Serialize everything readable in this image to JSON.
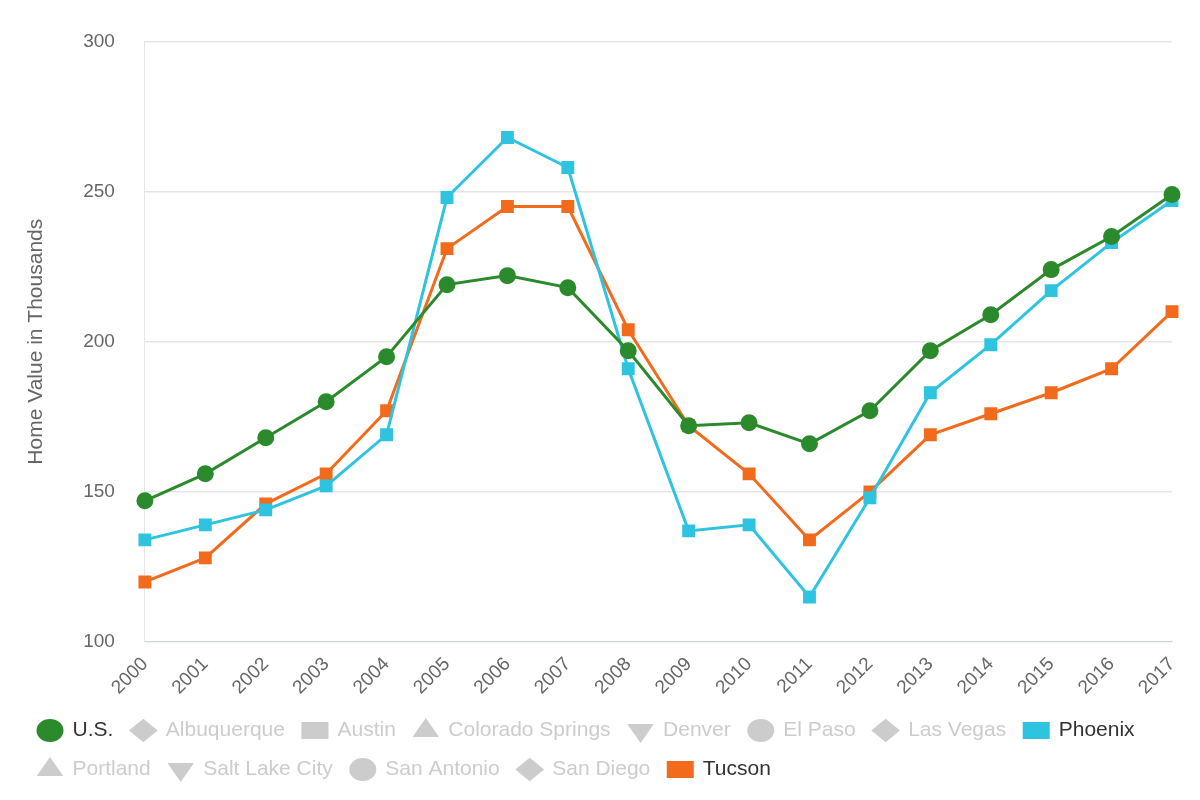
{
  "chart_data": {
    "type": "line",
    "y_label": "Home Value in Thousands",
    "categories": [
      "2000",
      "2001",
      "2002",
      "2003",
      "2004",
      "2005",
      "2006",
      "2007",
      "2008",
      "2009",
      "2010",
      "2011",
      "2012",
      "2013",
      "2014",
      "2015",
      "2016",
      "2017"
    ],
    "ylim": [
      100,
      300
    ],
    "yticks": [
      100,
      150,
      200,
      250,
      300
    ],
    "grid": true,
    "legend": "bottom",
    "series": [
      {
        "name": "U.S.",
        "color": "#2b8a2b",
        "marker": "circle",
        "values": [
          147,
          156,
          168,
          180,
          195,
          219,
          222,
          218,
          197,
          172,
          173,
          166,
          177,
          197,
          209,
          224,
          235,
          249
        ]
      },
      {
        "name": "Albuquerque",
        "color": "#cccccc",
        "marker": "diamond",
        "values": [
          null,
          null,
          null,
          null,
          null,
          null,
          null,
          null,
          null,
          null,
          null,
          null,
          null,
          null,
          null,
          null,
          null,
          null
        ]
      },
      {
        "name": "Austin",
        "color": "#cccccc",
        "marker": "square",
        "values": [
          null,
          null,
          null,
          null,
          null,
          null,
          null,
          null,
          null,
          null,
          null,
          null,
          null,
          null,
          null,
          null,
          null,
          null
        ]
      },
      {
        "name": "Colorado Springs",
        "color": "#cccccc",
        "marker": "triangle",
        "values": [
          null,
          null,
          null,
          null,
          null,
          null,
          null,
          null,
          null,
          null,
          null,
          null,
          null,
          null,
          null,
          null,
          null,
          null
        ]
      },
      {
        "name": "Denver",
        "color": "#cccccc",
        "marker": "triangle-down",
        "values": [
          null,
          null,
          null,
          null,
          null,
          null,
          null,
          null,
          null,
          null,
          null,
          null,
          null,
          null,
          null,
          null,
          null,
          null
        ]
      },
      {
        "name": "El Paso",
        "color": "#cccccc",
        "marker": "circle",
        "values": [
          null,
          null,
          null,
          null,
          null,
          null,
          null,
          null,
          null,
          null,
          null,
          null,
          null,
          null,
          null,
          null,
          null,
          null
        ]
      },
      {
        "name": "Las Vegas",
        "color": "#cccccc",
        "marker": "diamond",
        "values": [
          null,
          null,
          null,
          null,
          null,
          null,
          null,
          null,
          null,
          null,
          null,
          null,
          null,
          null,
          null,
          null,
          null,
          null
        ]
      },
      {
        "name": "Phoenix",
        "color": "#2ec4e0",
        "marker": "square",
        "values": [
          134,
          139,
          144,
          152,
          169,
          248,
          268,
          258,
          191,
          137,
          139,
          115,
          148,
          183,
          199,
          217,
          233,
          247
        ]
      },
      {
        "name": "Portland",
        "color": "#cccccc",
        "marker": "triangle",
        "values": [
          null,
          null,
          null,
          null,
          null,
          null,
          null,
          null,
          null,
          null,
          null,
          null,
          null,
          null,
          null,
          null,
          null,
          null
        ]
      },
      {
        "name": "Salt Lake City",
        "color": "#cccccc",
        "marker": "triangle-down",
        "values": [
          null,
          null,
          null,
          null,
          null,
          null,
          null,
          null,
          null,
          null,
          null,
          null,
          null,
          null,
          null,
          null,
          null,
          null
        ]
      },
      {
        "name": "San Antonio",
        "color": "#cccccc",
        "marker": "circle",
        "values": [
          null,
          null,
          null,
          null,
          null,
          null,
          null,
          null,
          null,
          null,
          null,
          null,
          null,
          null,
          null,
          null,
          null,
          null
        ]
      },
      {
        "name": "San Diego",
        "color": "#cccccc",
        "marker": "diamond",
        "values": [
          null,
          null,
          null,
          null,
          null,
          null,
          null,
          null,
          null,
          null,
          null,
          null,
          null,
          null,
          null,
          null,
          null,
          null
        ]
      },
      {
        "name": "Tucson",
        "color": "#f26b1d",
        "marker": "square",
        "values": [
          120,
          128,
          146,
          156,
          177,
          231,
          245,
          245,
          204,
          172,
          156,
          134,
          150,
          169,
          176,
          183,
          191,
          210
        ]
      }
    ]
  }
}
